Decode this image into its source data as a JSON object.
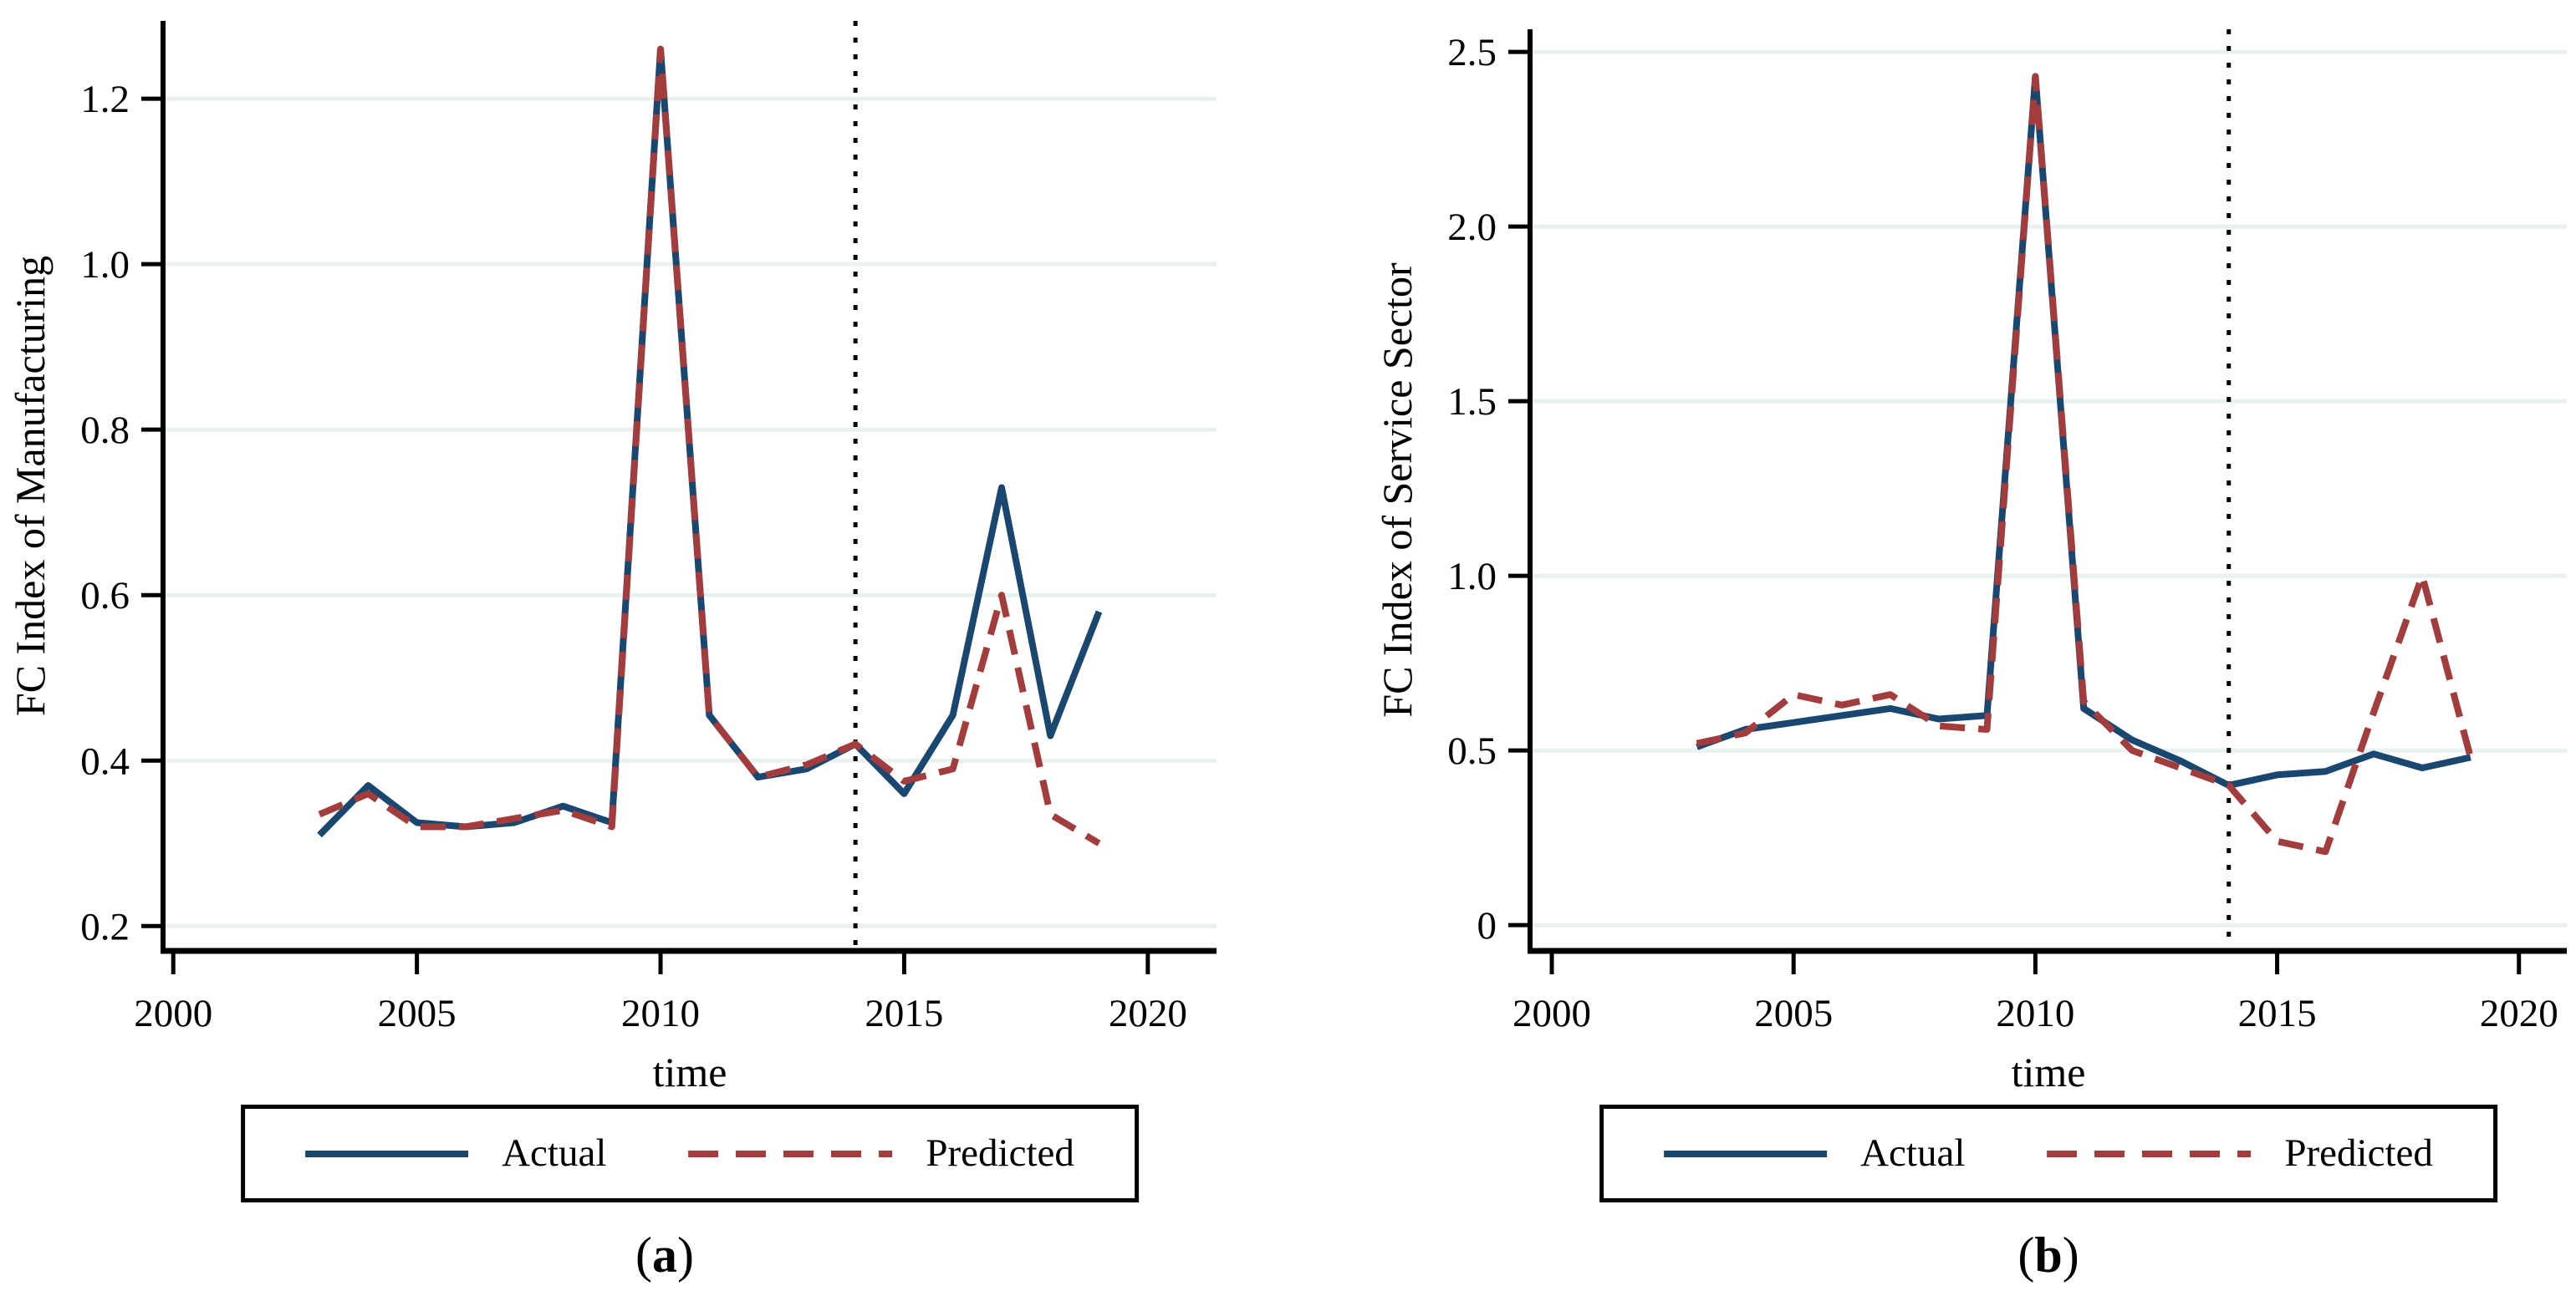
{
  "figure": {
    "background": "#ffffff",
    "colors": {
      "actual": "#1a476f",
      "predicted": "#a33c3c",
      "grid": "#e8f1f0",
      "axis": "#000000",
      "ref_line": "#000000"
    }
  },
  "chart_data": [
    {
      "id": "a",
      "type": "line",
      "panel_label_open": "(",
      "panel_letter": "a",
      "panel_label_close": ")",
      "xlabel": "time",
      "ylabel": "FC Index of Manufacturing",
      "xticks": [
        2000,
        2005,
        2010,
        2015,
        2020
      ],
      "xtick_labels": [
        "2000",
        "2005",
        "2010",
        "2015",
        "2020"
      ],
      "yticks": [
        0.2,
        0.4,
        0.6,
        0.8,
        1.0,
        1.2
      ],
      "ytick_labels": [
        "0.2",
        "0.4",
        "0.6",
        "0.8",
        "1.0",
        "1.2"
      ],
      "xlim": [
        1999.79,
        2021.41
      ],
      "ylim": [
        0.17,
        1.294
      ],
      "grid": true,
      "legend_position": "bottom",
      "ref_line_x": 2014,
      "x": [
        2003,
        2004,
        2005,
        2006,
        2007,
        2008,
        2009,
        2010,
        2011,
        2012,
        2013,
        2014,
        2015,
        2016,
        2017,
        2018,
        2019
      ],
      "series": [
        {
          "name": "Actual",
          "style": "solid",
          "color_key": "actual",
          "values": [
            0.31,
            0.37,
            0.325,
            0.32,
            0.325,
            0.345,
            0.325,
            1.26,
            0.455,
            0.38,
            0.39,
            0.42,
            0.36,
            0.455,
            0.73,
            0.43,
            0.58
          ]
        },
        {
          "name": "Predicted",
          "style": "dashed",
          "color_key": "predicted",
          "values": [
            0.335,
            0.36,
            0.32,
            0.32,
            0.33,
            0.34,
            0.32,
            1.26,
            0.455,
            0.38,
            0.395,
            0.42,
            0.375,
            0.39,
            0.6,
            0.335,
            0.3
          ]
        }
      ],
      "legend": {
        "actual": "Actual",
        "predicted": "Predicted"
      }
    },
    {
      "id": "b",
      "type": "line",
      "panel_label_open": "(",
      "panel_letter": "b",
      "panel_label_close": ")",
      "xlabel": "time",
      "ylabel": "FC Index of Service Sector",
      "xticks": [
        2000,
        2005,
        2010,
        2015,
        2020
      ],
      "xtick_labels": [
        "2000",
        "2005",
        "2010",
        "2015",
        "2020"
      ],
      "yticks": [
        0,
        0.5,
        1.0,
        1.5,
        2.0,
        2.5
      ],
      "ytick_labels": [
        "0",
        "0.5",
        "1.0",
        "1.5",
        "2.0",
        "2.5"
      ],
      "xlim": [
        1999.55,
        2020.99
      ],
      "ylim": [
        -0.074,
        2.565
      ],
      "grid": true,
      "legend_position": "bottom",
      "ref_line_x": 2014,
      "x": [
        2003,
        2004,
        2005,
        2006,
        2007,
        2008,
        2009,
        2010,
        2011,
        2012,
        2013,
        2014,
        2015,
        2016,
        2017,
        2018,
        2019
      ],
      "series": [
        {
          "name": "Actual",
          "style": "solid",
          "color_key": "actual",
          "values": [
            0.51,
            0.56,
            0.58,
            0.6,
            0.62,
            0.59,
            0.6,
            2.43,
            0.62,
            0.53,
            0.47,
            0.4,
            0.43,
            0.44,
            0.49,
            0.45,
            0.48
          ]
        },
        {
          "name": "Predicted",
          "style": "dashed",
          "color_key": "predicted",
          "values": [
            0.52,
            0.55,
            0.66,
            0.63,
            0.66,
            0.57,
            0.56,
            2.43,
            0.64,
            0.5,
            0.45,
            0.4,
            0.24,
            0.21,
            0.61,
            1.0,
            0.48
          ]
        }
      ],
      "legend": {
        "actual": "Actual",
        "predicted": "Predicted"
      }
    }
  ]
}
